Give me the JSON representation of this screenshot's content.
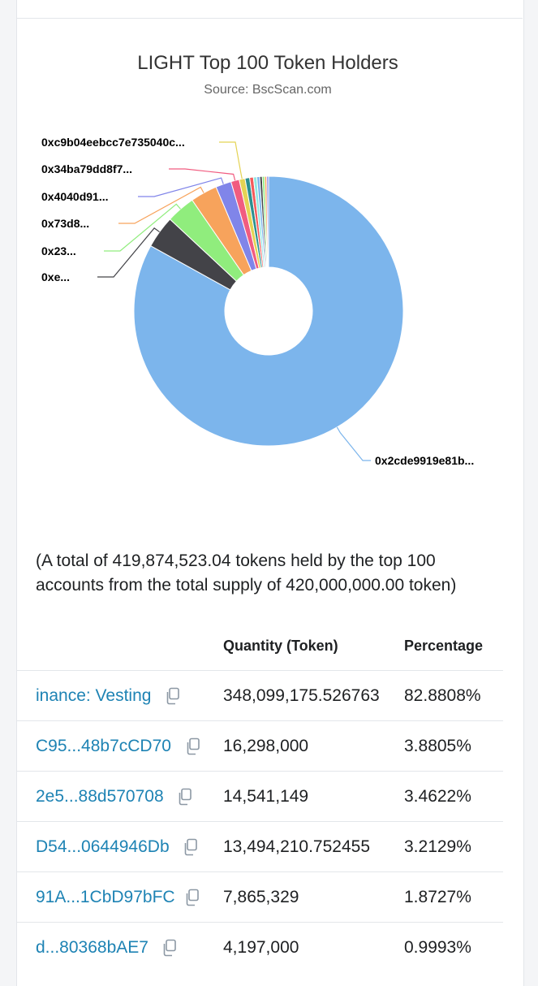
{
  "chart_data": {
    "type": "pie",
    "title": "LIGHT Top 100 Token Holders",
    "subtitle": "Source: BscScan.com",
    "slices": [
      {
        "label": "0x2cde9919e81b...",
        "value": 82.8808,
        "color": "#7cb5ec",
        "labeled": true
      },
      {
        "label": "0xe...",
        "value": 3.8805,
        "color": "#434348",
        "labeled": true
      },
      {
        "label": "0x23...",
        "value": 3.4622,
        "color": "#90ed7d",
        "labeled": true
      },
      {
        "label": "0x73d8...",
        "value": 3.2129,
        "color": "#f7a35c",
        "labeled": true
      },
      {
        "label": "0x4040d91...",
        "value": 1.8727,
        "color": "#8085e9",
        "labeled": true
      },
      {
        "label": "0x34ba79dd8f7...",
        "value": 0.9993,
        "color": "#f15c80",
        "labeled": true
      },
      {
        "label": "0xc9b04eebcc7e735040c...",
        "value": 0.7,
        "color": "#e4d354",
        "labeled": true
      },
      {
        "label": "",
        "value": 0.55,
        "color": "#2b908f",
        "labeled": false
      },
      {
        "label": "",
        "value": 0.45,
        "color": "#f45b5b",
        "labeled": false
      },
      {
        "label": "",
        "value": 0.4,
        "color": "#91e8e1",
        "labeled": false
      },
      {
        "label": "",
        "value": 0.35,
        "color": "#7cb5ec",
        "labeled": false
      },
      {
        "label": "",
        "value": 0.3,
        "color": "#434348",
        "labeled": false
      },
      {
        "label": "",
        "value": 0.28,
        "color": "#90ed7d",
        "labeled": false
      },
      {
        "label": "",
        "value": 0.25,
        "color": "#f7a35c",
        "labeled": false
      },
      {
        "label": "",
        "value": 0.22,
        "color": "#8085e9",
        "labeled": false
      }
    ]
  },
  "summary": {
    "line1": "(A total of 419,874,523.04 tokens held by the top 100",
    "line2": "accounts from the total supply of 420,000,000.00 token)"
  },
  "table": {
    "headers": {
      "quantity": "Quantity (Token)",
      "percentage": "Percentage"
    },
    "rows": [
      {
        "address": "inance: Vesting",
        "quantity": "348,099,175.526763",
        "percentage": "82.8808%"
      },
      {
        "address": "C95...48b7cCD70",
        "quantity": "16,298,000",
        "percentage": "3.8805%"
      },
      {
        "address": "2e5...88d570708",
        "quantity": "14,541,149",
        "percentage": "3.4622%"
      },
      {
        "address": "D54...0644946Db",
        "quantity": "13,494,210.752455",
        "percentage": "3.2129%"
      },
      {
        "address": "91A...1CbD97bFC",
        "quantity": "7,865,329",
        "percentage": "1.8727%"
      },
      {
        "address": "d...80368bAE7",
        "quantity": "4,197,000",
        "percentage": "0.9993%"
      }
    ]
  }
}
